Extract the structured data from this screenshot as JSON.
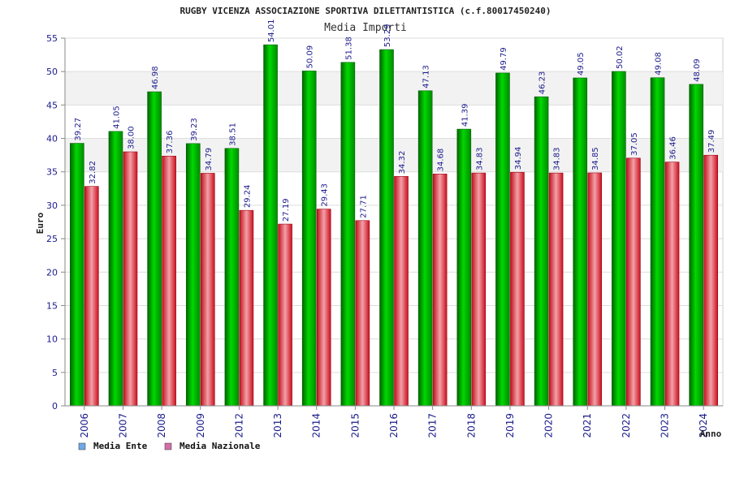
{
  "chart_data": {
    "type": "bar",
    "title": "RUGBY VICENZA ASSOCIAZIONE SPORTIVA DILETTANTISTICA (c.f.80017450240)",
    "subtitle": "Media Importi",
    "xlabel": "Anno",
    "ylabel": "Euro",
    "ylim": [
      0,
      55
    ],
    "yticks": [
      0,
      5,
      10,
      15,
      20,
      25,
      30,
      35,
      40,
      45,
      50,
      55
    ],
    "grid": true,
    "legend_position": "bottom-left",
    "categories": [
      "2006",
      "2007",
      "2008",
      "2009",
      "2012",
      "2013",
      "2014",
      "2015",
      "2016",
      "2017",
      "2018",
      "2019",
      "2020",
      "2021",
      "2022",
      "2023",
      "2024"
    ],
    "series": [
      {
        "name": "Media Ente",
        "color": "#00b000",
        "legend_color": "#6fa8e6",
        "values": [
          39.27,
          41.05,
          46.98,
          39.23,
          38.51,
          54.01,
          50.09,
          51.38,
          53.29,
          47.13,
          41.39,
          49.79,
          46.23,
          49.05,
          50.02,
          49.08,
          48.09
        ],
        "labels": [
          "39.27",
          "41.05",
          "46.98",
          "39.23",
          "38.51",
          "54.01",
          "50.09",
          "51.38",
          "53.29",
          "47.13",
          "41.39",
          "49.79",
          "46.23",
          "49.05",
          "50.02",
          "49.08",
          "48.09"
        ]
      },
      {
        "name": "Media Nazionale",
        "color": "#e02030",
        "legend_color": "#d36fa8",
        "values": [
          32.82,
          38.0,
          37.36,
          34.79,
          29.24,
          27.19,
          29.43,
          27.71,
          34.32,
          34.68,
          34.83,
          34.94,
          34.83,
          34.85,
          37.05,
          36.46,
          37.49
        ],
        "labels": [
          "32.82",
          "38.00",
          "37.36",
          "34.79",
          "29.24",
          "27.19",
          "29.43",
          "27.71",
          "34.32",
          "34.68",
          "34.83",
          "34.94",
          "34.83",
          "34.85",
          "37.05",
          "36.46",
          "37.49"
        ]
      }
    ]
  }
}
